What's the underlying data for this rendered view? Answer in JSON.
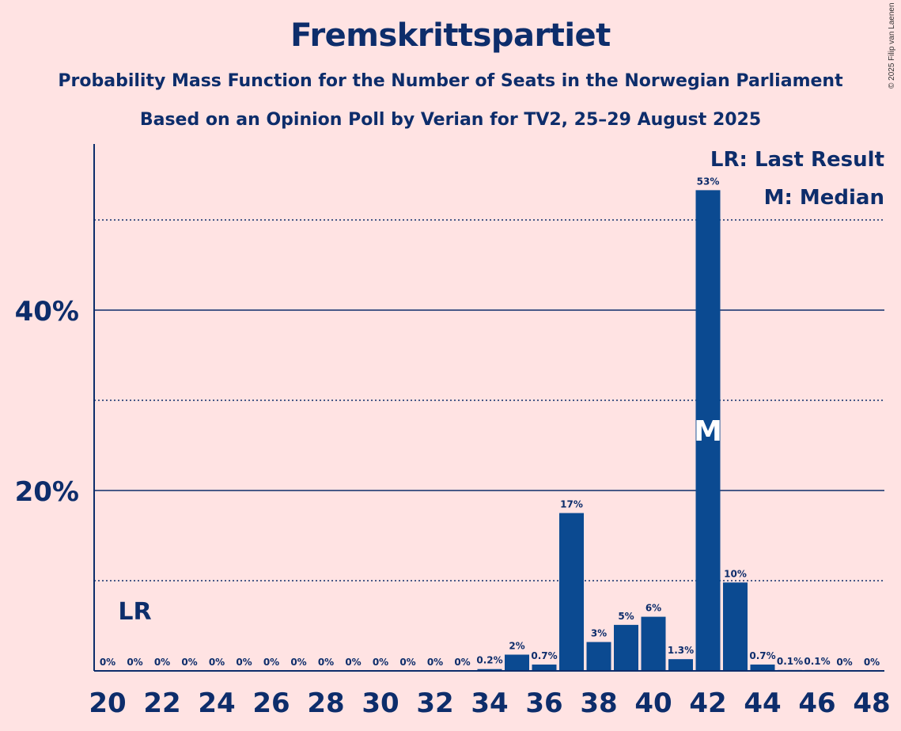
{
  "header": {
    "title": "Fremskrittspartiet",
    "subtitle_1": "Probability Mass Function for the Number of Seats in the Norwegian Parliament",
    "subtitle_2": "Based on an Opinion Poll by Verian for TV2, 25–29 August 2025",
    "copyright": "© 2025 Filip van Laenen"
  },
  "legend": {
    "last_result": "LR: Last Result",
    "median": "M: Median"
  },
  "markers": {
    "last_result_label": "LR",
    "last_result_seat": 21,
    "median_label": "M",
    "median_seat": 42
  },
  "colors": {
    "background": "#ffe3e3",
    "bar": "#0b4a91",
    "text": "#0d2d6b"
  },
  "chart_data": {
    "type": "bar",
    "title": "Fremskrittspartiet",
    "xlabel": "",
    "ylabel": "",
    "categories": [
      20,
      21,
      22,
      23,
      24,
      25,
      26,
      27,
      28,
      29,
      30,
      31,
      32,
      33,
      34,
      35,
      36,
      37,
      38,
      39,
      40,
      41,
      42,
      43,
      44,
      45,
      46,
      47,
      48
    ],
    "values": [
      0,
      0,
      0,
      0,
      0,
      0,
      0,
      0,
      0,
      0,
      0,
      0,
      0,
      0,
      0.2,
      1.8,
      0.7,
      17.5,
      3.2,
      5.1,
      6.0,
      1.3,
      53.3,
      9.8,
      0.7,
      0.1,
      0.1,
      0,
      0
    ],
    "value_labels": [
      "0%",
      "0%",
      "0%",
      "0%",
      "0%",
      "0%",
      "0%",
      "0%",
      "0%",
      "0%",
      "0%",
      "0%",
      "0%",
      "0%",
      "0.2%",
      "2%",
      "0.7%",
      "17%",
      "3%",
      "5%",
      "6%",
      "1.3%",
      "53%",
      "10%",
      "0.7%",
      "0.1%",
      "0.1%",
      "0%",
      "0%"
    ],
    "x_tick_labels": [
      "20",
      "22",
      "24",
      "26",
      "28",
      "30",
      "32",
      "34",
      "36",
      "38",
      "40",
      "42",
      "44",
      "46",
      "48"
    ],
    "y_ticks": [
      {
        "value": 10,
        "label": "",
        "style": "dotted"
      },
      {
        "value": 20,
        "label": "20%",
        "style": "solid"
      },
      {
        "value": 30,
        "label": "",
        "style": "dotted"
      },
      {
        "value": 40,
        "label": "40%",
        "style": "solid"
      },
      {
        "value": 50,
        "label": "",
        "style": "dotted"
      }
    ],
    "ylim": [
      0,
      58
    ],
    "grid": true,
    "legend_position": "top-right"
  }
}
